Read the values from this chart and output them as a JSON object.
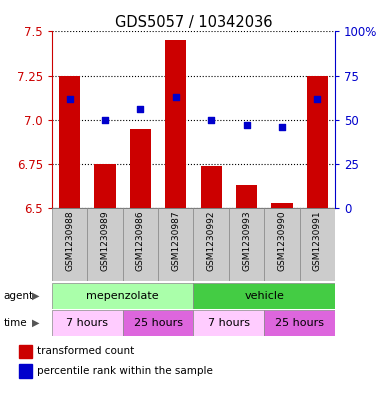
{
  "title": "GDS5057 / 10342036",
  "samples": [
    "GSM1230988",
    "GSM1230989",
    "GSM1230986",
    "GSM1230987",
    "GSM1230992",
    "GSM1230993",
    "GSM1230990",
    "GSM1230991"
  ],
  "bar_values": [
    7.25,
    6.75,
    6.95,
    7.45,
    6.74,
    6.63,
    6.53,
    7.25
  ],
  "bar_bottom": 6.5,
  "blue_dot_values": [
    7.12,
    7.0,
    7.06,
    7.13,
    7.0,
    6.97,
    6.96,
    7.12
  ],
  "ylim": [
    6.5,
    7.5
  ],
  "yticks_left": [
    6.5,
    6.75,
    7.0,
    7.25,
    7.5
  ],
  "yticks_right": [
    0,
    25,
    50,
    75,
    100
  ],
  "bar_color": "#CC0000",
  "dot_color": "#0000CC",
  "color_agent_mep": "#aaffaa",
  "color_agent_veh": "#44cc44",
  "color_7h": "#ffccff",
  "color_25h": "#dd66dd",
  "color_sample_bg": "#cccccc",
  "background_color": "#ffffff"
}
